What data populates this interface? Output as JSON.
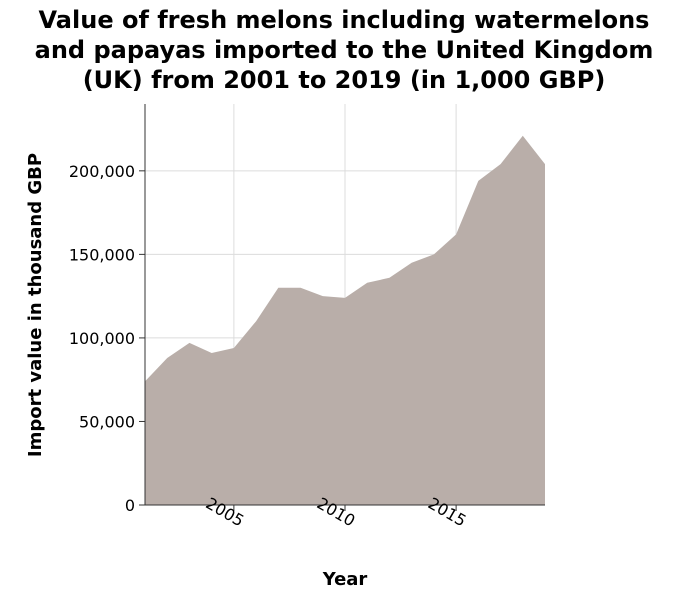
{
  "chart_data": {
    "type": "area",
    "title_lines": [
      "Value of fresh melons including watermelons",
      "and papayas imported to the United Kingdom",
      "(UK) from 2001 to 2019 (in 1,000 GBP)"
    ],
    "xlabel": "Year",
    "ylabel": "Import value in thousand GBP",
    "xlim": [
      2001,
      2019
    ],
    "ylim": [
      0,
      240000
    ],
    "x_ticks": [
      2005,
      2010,
      2015
    ],
    "x_tick_labels": [
      "2005",
      "2010",
      "2015"
    ],
    "y_ticks": [
      0,
      50000,
      100000,
      150000,
      200000
    ],
    "y_tick_labels": [
      "0",
      "50,000",
      "100,000",
      "150,000",
      "200,000"
    ],
    "grid": true,
    "fill_color": "#b9aea9",
    "x": [
      2001,
      2002,
      2003,
      2004,
      2005,
      2006,
      2007,
      2008,
      2009,
      2010,
      2011,
      2012,
      2013,
      2014,
      2015,
      2016,
      2017,
      2018,
      2019
    ],
    "values": [
      74000,
      88000,
      97000,
      91000,
      94000,
      110000,
      130000,
      130000,
      125000,
      124000,
      133000,
      136000,
      145000,
      150000,
      162000,
      194000,
      204000,
      221000,
      204000
    ]
  }
}
